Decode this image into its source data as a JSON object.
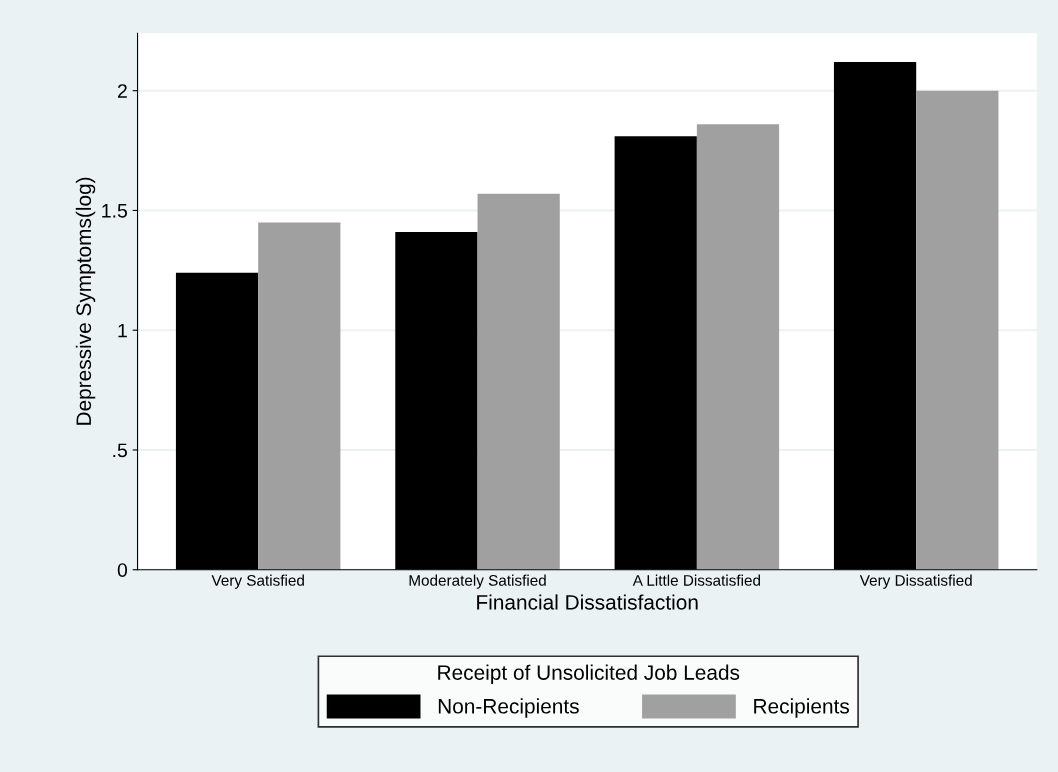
{
  "chart_data": {
    "type": "bar",
    "xlabel": "Financial Dissatisfaction",
    "ylabel": "Depressive Symptoms(log)",
    "legend_title": "Receipt of Unsolicited Job Leads",
    "categories": [
      "Very Satisfied",
      "Moderately Satisfied",
      "A Little Dissatisfied",
      "Very Dissatisfied"
    ],
    "series": [
      {
        "name": "Non-Recipients",
        "color": "#000000",
        "values": [
          1.24,
          1.41,
          1.81,
          2.12
        ]
      },
      {
        "name": "Recipients",
        "color": "#a0a0a0",
        "values": [
          1.45,
          1.57,
          1.86,
          2.0
        ]
      }
    ],
    "ylim": [
      0,
      2.24
    ],
    "yticks": [
      0,
      {
        "value": 0.5,
        "label": ".5"
      },
      1,
      1.5,
      2
    ],
    "grid": "y",
    "legend": "bottom"
  }
}
